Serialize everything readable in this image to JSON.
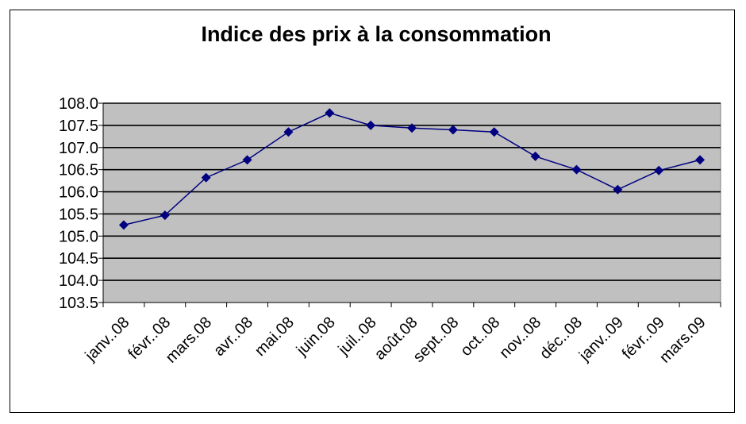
{
  "chart_data": {
    "type": "line",
    "title": "Indice des prix à la consommation",
    "xlabel": "",
    "ylabel": "",
    "categories": [
      "janv..08",
      "févr..08",
      "mars.08",
      "avr..08",
      "mai.08",
      "juin.08",
      "juil..08",
      "août.08",
      "sept..08",
      "oct..08",
      "nov..08",
      "déc..08",
      "janv..09",
      "févr..09",
      "mars.09"
    ],
    "series": [
      {
        "values": [
          105.25,
          105.47,
          106.32,
          106.72,
          107.35,
          107.78,
          107.5,
          107.44,
          107.4,
          107.35,
          106.8,
          106.5,
          106.05,
          106.48,
          106.72
        ]
      }
    ],
    "ylim": [
      103.5,
      108.0
    ],
    "yticks": [
      "108.0",
      "107.5",
      "107.0",
      "106.5",
      "106.0",
      "105.5",
      "105.0",
      "104.5",
      "104.0",
      "103.5"
    ],
    "grid": true,
    "legend": "none",
    "colors": {
      "line": "#000080",
      "marker": "#000080",
      "plot_background": "#c0c0c0",
      "grid": "#000000"
    }
  }
}
